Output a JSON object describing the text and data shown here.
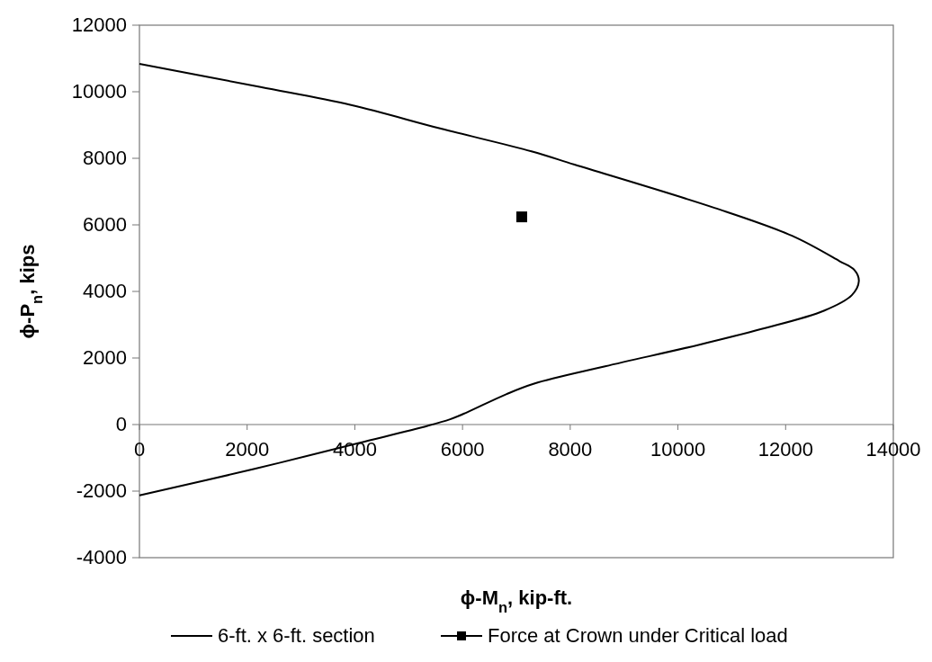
{
  "chart_data": {
    "type": "line",
    "xlabel": "ϕ-M$_{n}$, kip-ft.",
    "ylabel": "ϕ-P$_{n}$, kips",
    "xlim": [
      0,
      14000
    ],
    "ylim": [
      -4000,
      12000
    ],
    "xticks": [
      0,
      2000,
      4000,
      6000,
      8000,
      10000,
      12000,
      14000
    ],
    "yticks": [
      -4000,
      -2000,
      0,
      2000,
      4000,
      6000,
      8000,
      10000,
      12000
    ],
    "grid": false,
    "legend": "bottom",
    "series": [
      {
        "name": "6-ft. x 6-ft. section",
        "color": "#000000",
        "marker": "none",
        "x": [
          0,
          2250,
          3930,
          5600,
          7280,
          8080,
          10680,
          12120,
          13000,
          13280,
          13360,
          13230,
          12710,
          11550,
          10400,
          8650,
          7330,
          6810,
          6060,
          5770,
          5350,
          4060,
          2120,
          0
        ],
        "values": [
          10840,
          10140,
          9600,
          8890,
          8210,
          7810,
          6510,
          5670,
          4910,
          4640,
          4310,
          3890,
          3420,
          2870,
          2400,
          1750,
          1230,
          910,
          350,
          160,
          -40,
          -560,
          -1340,
          -2130
        ]
      },
      {
        "name": "Force at Crown under Critical load",
        "color": "#000000",
        "marker": "square",
        "x": [
          7100
        ],
        "values": [
          6240
        ]
      }
    ]
  }
}
